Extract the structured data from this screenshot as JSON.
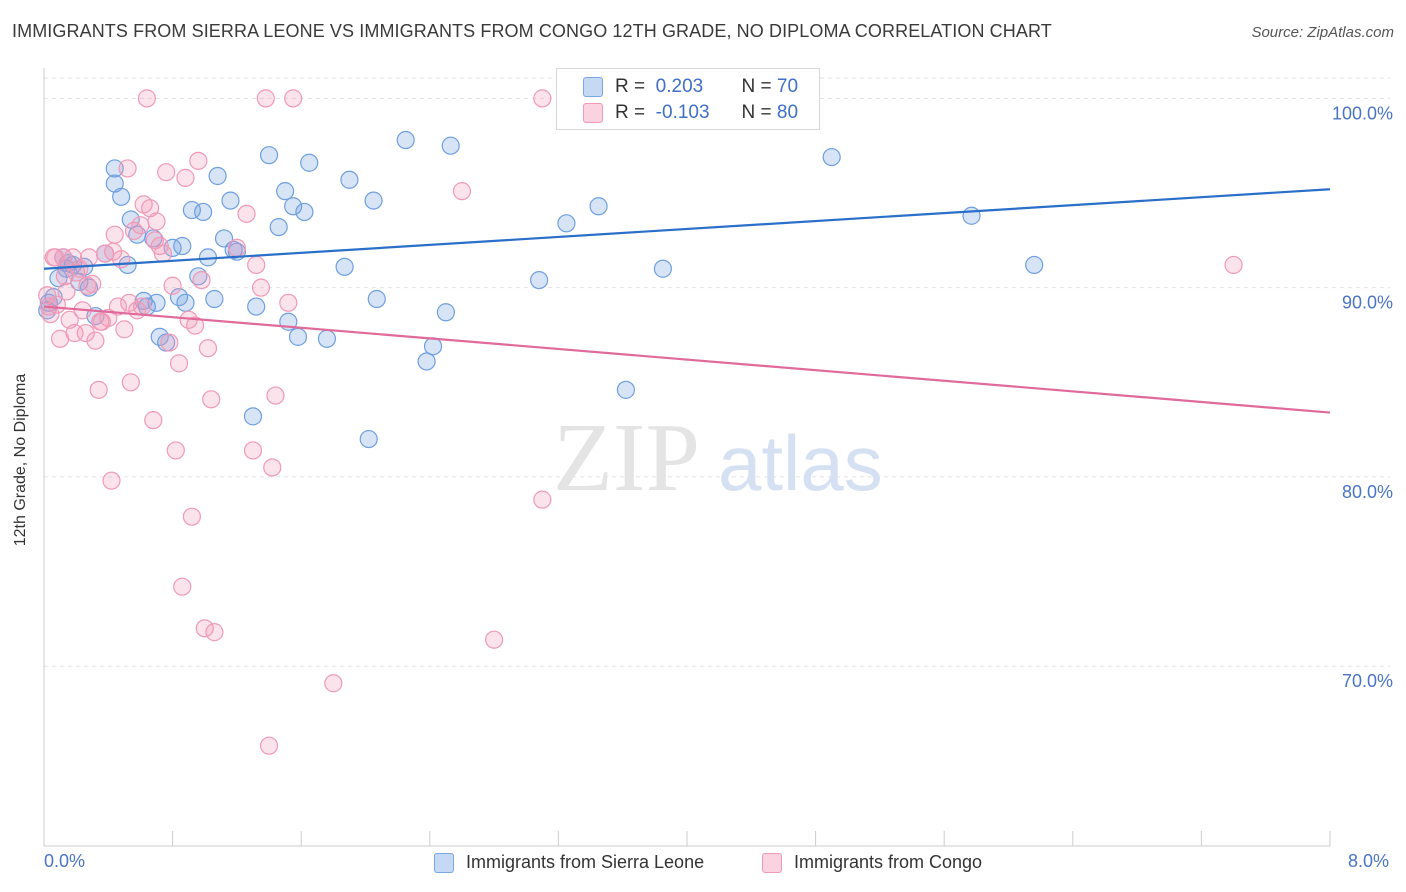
{
  "title": "IMMIGRANTS FROM SIERRA LEONE VS IMMIGRANTS FROM CONGO 12TH GRADE, NO DIPLOMA CORRELATION CHART",
  "source": "Source: ZipAtlas.com",
  "watermark": {
    "zip": "ZIP",
    "atlas": "atlas"
  },
  "colors": {
    "blue": "#6f9fe0",
    "blue_line": "#2a6fc9",
    "pink": "#f199b6",
    "pink_line": "#e06a99",
    "tick_text": "#4a74c4"
  },
  "legend_box": {
    "rows": [
      {
        "r_label": "R =",
        "r_value": "0.203",
        "n_label": "N =",
        "n_value": "70"
      },
      {
        "r_label": "R =",
        "r_value": "-0.103",
        "n_label": "N =",
        "n_value": "80"
      }
    ]
  },
  "chart_data": {
    "type": "scatter",
    "title": "IMMIGRANTS FROM SIERRA LEONE VS IMMIGRANTS FROM CONGO 12TH GRADE, NO DIPLOMA CORRELATION CHART",
    "xlabel": "",
    "ylabel": "12th Grade, No Diploma",
    "xlim": [
      0,
      8
    ],
    "ylim": [
      60.5,
      101.5
    ],
    "x_tick_labels": [
      "0.0%",
      "8.0%"
    ],
    "y_ticks": [
      70,
      80,
      90,
      100
    ],
    "y_tick_labels": [
      "70.0%",
      "80.0%",
      "90.0%",
      "100.0%"
    ],
    "grid": true,
    "legend_position": "bottom",
    "series": [
      {
        "name": "Immigrants from Sierra Leone",
        "color": "#6f9fe0",
        "trend": [
          [
            0,
            91.0
          ],
          [
            8,
            95.2
          ]
        ],
        "points": [
          [
            0.02,
            88.8
          ],
          [
            0.06,
            89.5
          ],
          [
            0.09,
            90.5
          ],
          [
            0.12,
            91.6
          ],
          [
            0.14,
            91.0
          ],
          [
            0.18,
            91.2
          ],
          [
            0.22,
            90.3
          ],
          [
            0.28,
            90.0
          ],
          [
            0.32,
            88.5
          ],
          [
            0.38,
            91.8
          ],
          [
            0.44,
            95.5
          ],
          [
            0.44,
            96.3
          ],
          [
            0.48,
            94.8
          ],
          [
            0.52,
            91.2
          ],
          [
            0.54,
            93.6
          ],
          [
            0.58,
            92.8
          ],
          [
            0.62,
            89.3
          ],
          [
            0.64,
            89.0
          ],
          [
            0.68,
            92.6
          ],
          [
            0.7,
            89.2
          ],
          [
            0.72,
            87.4
          ],
          [
            0.76,
            87.1
          ],
          [
            0.8,
            92.1
          ],
          [
            0.84,
            89.5
          ],
          [
            0.86,
            92.2
          ],
          [
            0.88,
            89.2
          ],
          [
            0.92,
            94.1
          ],
          [
            0.96,
            90.6
          ],
          [
            0.99,
            94.0
          ],
          [
            1.02,
            91.6
          ],
          [
            1.06,
            89.4
          ],
          [
            1.08,
            95.9
          ],
          [
            1.12,
            92.6
          ],
          [
            1.16,
            94.6
          ],
          [
            1.18,
            92.0
          ],
          [
            1.2,
            91.9
          ],
          [
            1.3,
            83.2
          ],
          [
            1.32,
            89.0
          ],
          [
            1.4,
            97.0
          ],
          [
            1.46,
            93.2
          ],
          [
            1.5,
            95.1
          ],
          [
            1.52,
            88.2
          ],
          [
            1.55,
            94.3
          ],
          [
            1.58,
            87.4
          ],
          [
            1.62,
            94.0
          ],
          [
            1.65,
            96.6
          ],
          [
            1.76,
            87.3
          ],
          [
            1.87,
            91.1
          ],
          [
            1.9,
            95.7
          ],
          [
            2.02,
            82.0
          ],
          [
            2.05,
            94.6
          ],
          [
            2.07,
            89.4
          ],
          [
            2.25,
            97.8
          ],
          [
            2.38,
            86.1
          ],
          [
            2.42,
            86.9
          ],
          [
            2.5,
            88.7
          ],
          [
            2.53,
            97.5
          ],
          [
            3.08,
            90.4
          ],
          [
            3.25,
            93.4
          ],
          [
            3.35,
            100.0
          ],
          [
            3.45,
            94.3
          ],
          [
            3.62,
            84.6
          ],
          [
            3.85,
            91.0
          ],
          [
            4.4,
            100.0
          ],
          [
            4.9,
            96.9
          ],
          [
            5.77,
            93.8
          ],
          [
            6.16,
            91.2
          ],
          [
            0.03,
            89.2
          ],
          [
            0.15,
            91.3
          ],
          [
            0.25,
            91.1
          ]
        ]
      },
      {
        "name": "Immigrants from Congo",
        "color": "#f199b6",
        "trend": [
          [
            0,
            89.0
          ],
          [
            8,
            83.4
          ]
        ],
        "points": [
          [
            0.02,
            89.6
          ],
          [
            0.04,
            88.6
          ],
          [
            0.06,
            91.6
          ],
          [
            0.08,
            89.1
          ],
          [
            0.1,
            87.3
          ],
          [
            0.12,
            91.6
          ],
          [
            0.14,
            89.8
          ],
          [
            0.16,
            88.3
          ],
          [
            0.18,
            91.6
          ],
          [
            0.2,
            90.8
          ],
          [
            0.22,
            91.0
          ],
          [
            0.24,
            88.8
          ],
          [
            0.26,
            87.6
          ],
          [
            0.28,
            91.6
          ],
          [
            0.3,
            90.2
          ],
          [
            0.32,
            87.2
          ],
          [
            0.34,
            84.6
          ],
          [
            0.36,
            88.2
          ],
          [
            0.38,
            91.8
          ],
          [
            0.4,
            88.4
          ],
          [
            0.42,
            79.8
          ],
          [
            0.44,
            92.8
          ],
          [
            0.46,
            89.0
          ],
          [
            0.48,
            91.5
          ],
          [
            0.5,
            87.8
          ],
          [
            0.52,
            96.3
          ],
          [
            0.54,
            85.0
          ],
          [
            0.56,
            93.0
          ],
          [
            0.58,
            88.8
          ],
          [
            0.6,
            93.3
          ],
          [
            0.62,
            94.4
          ],
          [
            0.64,
            100.0
          ],
          [
            0.66,
            94.2
          ],
          [
            0.68,
            83.0
          ],
          [
            0.7,
            93.5
          ],
          [
            0.72,
            92.2
          ],
          [
            0.74,
            91.8
          ],
          [
            0.76,
            96.1
          ],
          [
            0.78,
            87.1
          ],
          [
            0.8,
            90.1
          ],
          [
            0.82,
            81.4
          ],
          [
            0.84,
            86.0
          ],
          [
            0.86,
            74.2
          ],
          [
            0.88,
            95.8
          ],
          [
            0.9,
            88.3
          ],
          [
            0.92,
            77.9
          ],
          [
            0.94,
            88.0
          ],
          [
            0.96,
            96.7
          ],
          [
            0.98,
            90.4
          ],
          [
            1.0,
            72.0
          ],
          [
            1.02,
            86.8
          ],
          [
            1.04,
            84.1
          ],
          [
            1.06,
            71.8
          ],
          [
            1.2,
            92.1
          ],
          [
            1.26,
            93.9
          ],
          [
            1.3,
            81.4
          ],
          [
            1.32,
            91.2
          ],
          [
            1.35,
            90.0
          ],
          [
            1.38,
            100.0
          ],
          [
            1.42,
            80.5
          ],
          [
            1.44,
            84.3
          ],
          [
            1.52,
            89.2
          ],
          [
            1.55,
            100.0
          ],
          [
            1.8,
            69.1
          ],
          [
            1.4,
            65.8
          ],
          [
            2.6,
            95.1
          ],
          [
            2.8,
            71.4
          ],
          [
            3.1,
            78.8
          ],
          [
            3.1,
            100.0
          ],
          [
            7.4,
            91.2
          ],
          [
            0.07,
            91.6
          ],
          [
            0.13,
            90.6
          ],
          [
            0.19,
            87.6
          ],
          [
            0.27,
            90.1
          ],
          [
            0.35,
            88.2
          ],
          [
            0.43,
            91.9
          ],
          [
            0.53,
            89.2
          ],
          [
            0.61,
            89.0
          ],
          [
            0.69,
            92.5
          ],
          [
            0.03,
            89.0
          ]
        ]
      }
    ]
  }
}
